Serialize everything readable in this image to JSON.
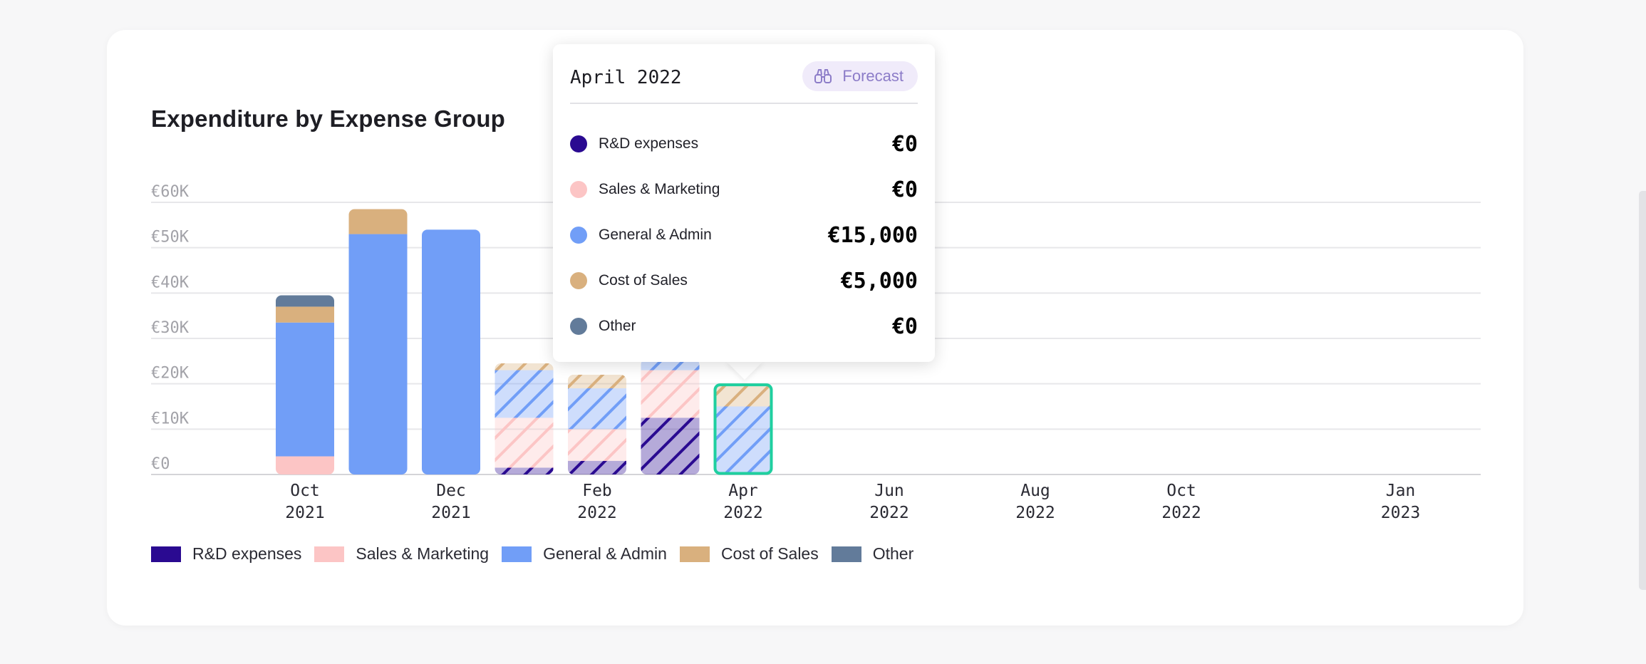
{
  "title": "Expenditure by Expense Group",
  "colors": {
    "rd": "#2a0a91",
    "sales": "#fcc5c5",
    "ga": "#719ef7",
    "cos": "#d9b07e",
    "other": "#627b9a",
    "highlight": "#1fcf9f"
  },
  "legend": [
    {
      "label": "R&D expenses",
      "color": "#2a0a91"
    },
    {
      "label": "Sales & Marketing",
      "color": "#fcc5c5"
    },
    {
      "label": "General & Admin",
      "color": "#719ef7"
    },
    {
      "label": "Cost of Sales",
      "color": "#d9b07e"
    },
    {
      "label": "Other",
      "color": "#627b9a"
    }
  ],
  "tooltip": {
    "title": "April 2022",
    "badge": "Forecast",
    "badge_icon": "binoculars-icon",
    "rows": [
      {
        "label": "R&D expenses",
        "value": "€0",
        "color": "#2a0a91"
      },
      {
        "label": "Sales & Marketing",
        "value": "€0",
        "color": "#fcc5c5"
      },
      {
        "label": "General & Admin",
        "value": "€15,000",
        "color": "#719ef7"
      },
      {
        "label": "Cost of Sales",
        "value": "€5,000",
        "color": "#d9b07e"
      },
      {
        "label": "Other",
        "value": "€0",
        "color": "#627b9a"
      }
    ]
  },
  "chart_data": {
    "type": "bar",
    "stacked": true,
    "title": "Expenditure by Expense Group",
    "ylim": [
      0,
      60000
    ],
    "yticks": [
      {
        "value": 0,
        "label": "€0"
      },
      {
        "value": 10000,
        "label": "€10K"
      },
      {
        "value": 20000,
        "label": "€20K"
      },
      {
        "value": 30000,
        "label": "€30K"
      },
      {
        "value": 40000,
        "label": "€40K"
      },
      {
        "value": 50000,
        "label": "€50K"
      },
      {
        "value": 60000,
        "label": "€60K"
      }
    ],
    "x_ticks": [
      {
        "line1": "Oct",
        "line2": "2021",
        "index": 0
      },
      {
        "line1": "Dec",
        "line2": "2021",
        "index": 2
      },
      {
        "line1": "Feb",
        "line2": "2022",
        "index": 4
      },
      {
        "line1": "Apr",
        "line2": "2022",
        "index": 6
      },
      {
        "line1": "Jun",
        "line2": "2022",
        "index": 8
      },
      {
        "line1": "Aug",
        "line2": "2022",
        "index": 10
      },
      {
        "line1": "Oct",
        "line2": "2022",
        "index": 12
      },
      {
        "line1": "Jan",
        "line2": "2023",
        "index": 15
      }
    ],
    "categories": [
      "Oct 2021",
      "Nov 2021",
      "Dec 2021",
      "Jan 2022",
      "Feb 2022",
      "Mar 2022",
      "Apr 2022"
    ],
    "forecast": [
      false,
      false,
      false,
      true,
      true,
      true,
      true
    ],
    "highlight_index": 6,
    "series": [
      {
        "name": "R&D expenses",
        "key": "rd",
        "values": [
          0,
          0,
          0,
          1500,
          3000,
          12500,
          0
        ]
      },
      {
        "name": "Sales & Marketing",
        "key": "sales",
        "values": [
          4000,
          0,
          0,
          11000,
          7000,
          10500,
          0
        ]
      },
      {
        "name": "General & Admin",
        "key": "ga",
        "values": [
          29500,
          53000,
          54000,
          10500,
          9000,
          2500,
          15000
        ]
      },
      {
        "name": "Cost of Sales",
        "key": "cos",
        "values": [
          3500,
          5500,
          0,
          1500,
          3000,
          0,
          5000
        ]
      },
      {
        "name": "Other",
        "key": "other",
        "values": [
          2500,
          0,
          0,
          0,
          0,
          0,
          0
        ]
      }
    ]
  }
}
